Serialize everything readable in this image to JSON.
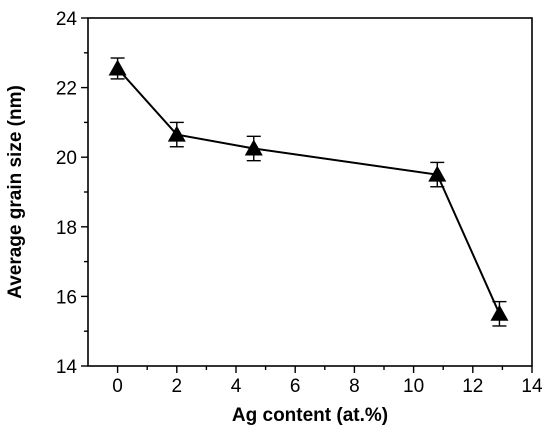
{
  "chart_data": {
    "type": "line",
    "title": "",
    "xlabel": "Ag content (at.%)",
    "ylabel": "Average grain size (nm)",
    "xlim": [
      -1,
      14
    ],
    "ylim": [
      14,
      24
    ],
    "xticks": [
      0,
      2,
      4,
      6,
      8,
      10,
      12,
      14
    ],
    "yticks": [
      14,
      16,
      18,
      20,
      22,
      24
    ],
    "grid": false,
    "legend": "none",
    "marker": "triangle",
    "series": [
      {
        "x": [
          0,
          2,
          4.6,
          10.8,
          12.9
        ],
        "y": [
          22.55,
          20.65,
          20.25,
          19.5,
          15.5
        ],
        "error": [
          0.3,
          0.35,
          0.35,
          0.35,
          0.35
        ]
      }
    ]
  }
}
